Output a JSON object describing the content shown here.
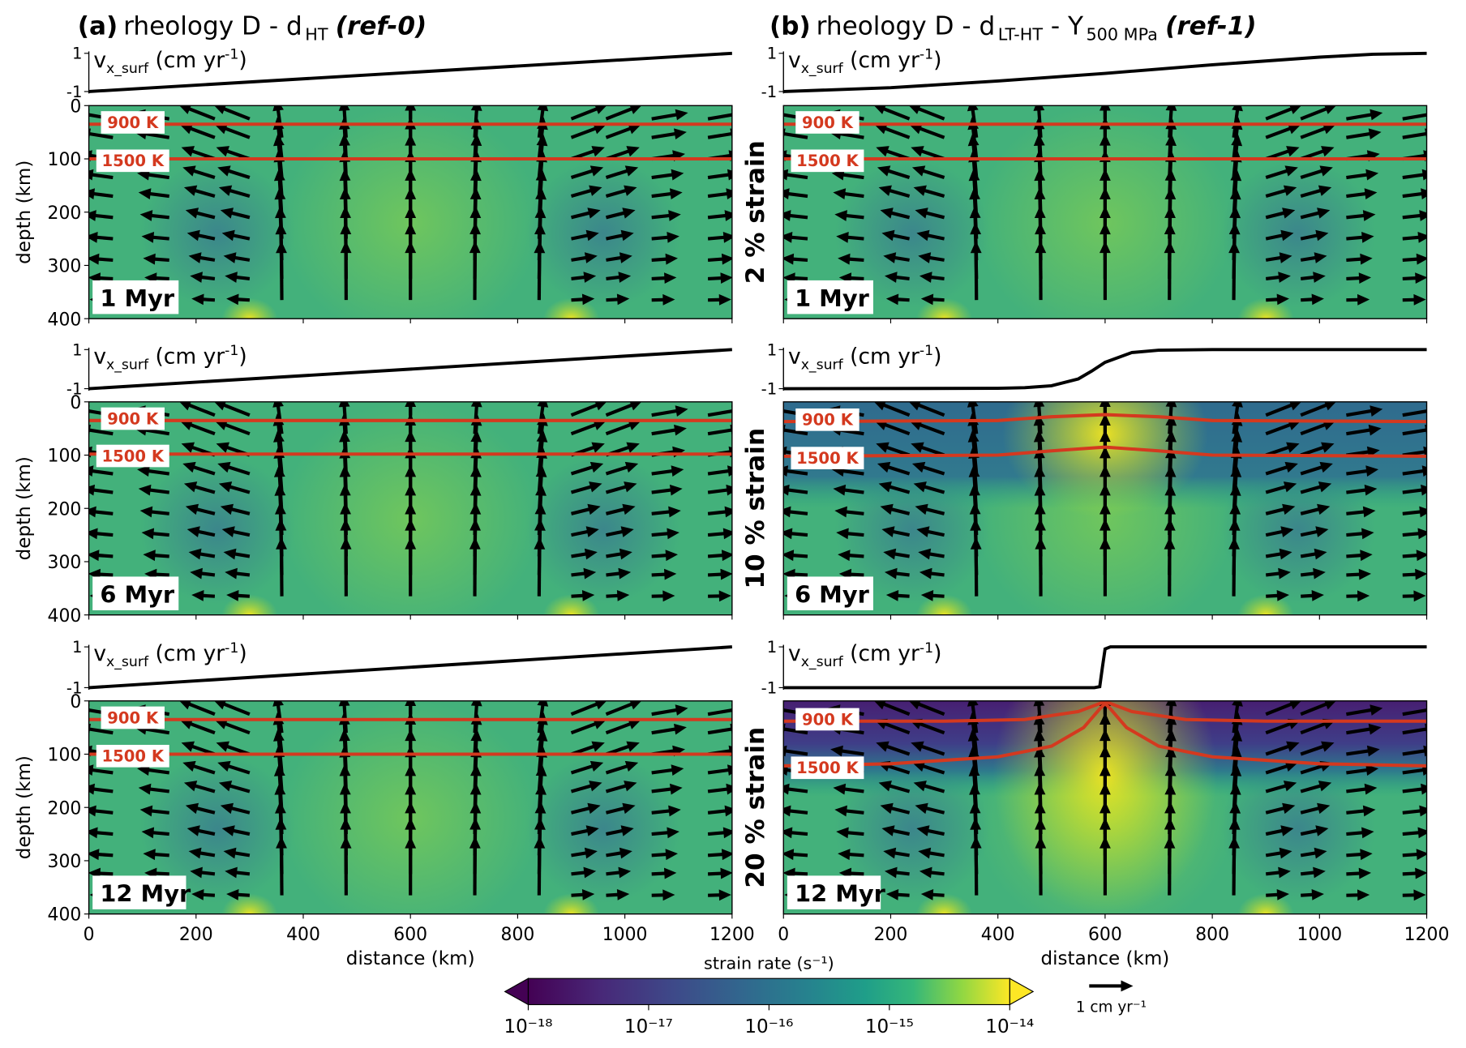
{
  "panels": [
    {
      "label": "(a)",
      "title": "rheology D - d",
      "title_sub": "HT",
      "ref": "(ref-0)"
    },
    {
      "label": "(b)",
      "title": "rheology D - d",
      "title_sub": "LT-HT",
      "title_mid": " - Y",
      "title_sub2": "500 MPa",
      "ref": "(ref-1)"
    }
  ],
  "vx_label": {
    "main": "v",
    "sub": "x_surf",
    "unit": " (cm yr",
    "exp": "-1",
    "close": ")"
  },
  "vx_lim": [
    -1.1,
    1.1
  ],
  "vx_ticks": [
    1,
    -1
  ],
  "depth_label": "depth (km)",
  "depth_lim": [
    0,
    400
  ],
  "depth_ticks": [
    0,
    100,
    200,
    300,
    400
  ],
  "distance_label": "distance (km)",
  "xlim": [
    0,
    1200
  ],
  "xticks": [
    0,
    200,
    400,
    600,
    800,
    1000,
    1200
  ],
  "isotherm_labels": [
    "900 K",
    "1500 K"
  ],
  "rows": [
    {
      "time": "1 Myr",
      "strain": "2 % strain"
    },
    {
      "time": "6 Myr",
      "strain": "10 % strain"
    },
    {
      "time": "12 Myr",
      "strain": "20 % strain"
    }
  ],
  "surface_velocity": [
    [
      {
        "x": [
          0,
          1200
        ],
        "values": [
          -1,
          1
        ]
      },
      {
        "x": [
          0,
          200,
          400,
          600,
          800,
          1000,
          1100,
          1200
        ],
        "values": [
          -1,
          -0.8,
          -0.45,
          -0.05,
          0.4,
          0.8,
          0.95,
          1
        ]
      }
    ],
    [
      {
        "x": [
          0,
          1200
        ],
        "values": [
          -1,
          1
        ]
      },
      {
        "x": [
          0,
          400,
          450,
          500,
          550,
          575,
          600,
          650,
          700,
          800,
          1200
        ],
        "values": [
          -1,
          -0.98,
          -0.95,
          -0.85,
          -0.5,
          -0.1,
          0.35,
          0.85,
          0.97,
          1,
          1
        ]
      }
    ],
    [
      {
        "x": [
          0,
          1200
        ],
        "values": [
          -1,
          1
        ]
      },
      {
        "x": [
          0,
          580,
          590,
          595,
          600,
          610,
          1200
        ],
        "values": [
          -1,
          -1,
          -0.95,
          0,
          0.9,
          1,
          1
        ]
      }
    ]
  ],
  "isotherms": [
    [
      [
        {
          "x": [
            0,
            1200
          ],
          "values": [
            35,
            35
          ]
        },
        {
          "x": [
            0,
            1200
          ],
          "values": [
            100,
            100
          ]
        }
      ],
      [
        {
          "x": [
            0,
            1200
          ],
          "values": [
            35,
            35
          ]
        },
        {
          "x": [
            0,
            1200
          ],
          "values": [
            100,
            100
          ]
        }
      ]
    ],
    [
      [
        {
          "x": [
            0,
            1200
          ],
          "values": [
            35,
            35
          ]
        },
        {
          "x": [
            0,
            1200
          ],
          "values": [
            98,
            98
          ]
        }
      ],
      [
        {
          "x": [
            0,
            400,
            500,
            600,
            700,
            800,
            1200
          ],
          "values": [
            37,
            35,
            28,
            24,
            28,
            35,
            37
          ]
        },
        {
          "x": [
            0,
            400,
            500,
            600,
            700,
            800,
            1200
          ],
          "values": [
            102,
            100,
            92,
            85,
            92,
            100,
            102
          ]
        }
      ]
    ],
    [
      [
        {
          "x": [
            0,
            1200
          ],
          "values": [
            35,
            35
          ]
        },
        {
          "x": [
            0,
            1200
          ],
          "values": [
            100,
            100
          ]
        }
      ],
      [
        {
          "x": [
            0,
            300,
            450,
            550,
            590,
            600,
            610,
            650,
            750,
            900,
            1200
          ],
          "values": [
            38,
            38,
            35,
            20,
            5,
            0,
            5,
            20,
            35,
            38,
            38
          ]
        },
        {
          "x": [
            0,
            200,
            400,
            500,
            560,
            590,
            600,
            610,
            640,
            700,
            800,
            1000,
            1200
          ],
          "values": [
            122,
            118,
            105,
            85,
            50,
            15,
            5,
            15,
            50,
            85,
            105,
            118,
            122
          ]
        }
      ]
    ]
  ],
  "colorbar": {
    "label": "strain rate (s⁻¹)",
    "lim": [
      -18,
      -14
    ],
    "ticks": [
      {
        "value": -18,
        "label": "10⁻¹⁸"
      },
      {
        "value": -17,
        "label": "10⁻¹⁷"
      },
      {
        "value": -16,
        "label": "10⁻¹⁶"
      },
      {
        "value": -15,
        "label": "10⁻¹⁵"
      },
      {
        "value": -14,
        "label": "10⁻¹⁴"
      }
    ]
  },
  "scale_arrow": {
    "value": 1,
    "label": "1 cm yr⁻¹"
  }
}
